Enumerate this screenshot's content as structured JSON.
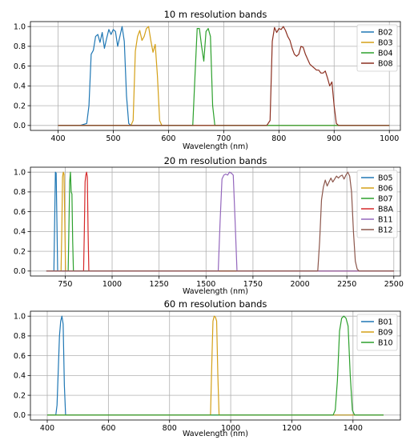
{
  "chart_data": [
    {
      "type": "line",
      "title": "10 m resolution bands",
      "xlabel": "Wavelength (nm)",
      "ylabel": "",
      "xlim": [
        350,
        1020
      ],
      "ylim": [
        -0.05,
        1.05
      ],
      "xticks": [
        "400",
        "500",
        "600",
        "700",
        "800",
        "900",
        "1000"
      ],
      "yticks": [
        "0.0",
        "0.2",
        "0.4",
        "0.6",
        "0.8",
        "1.0"
      ],
      "grid": true,
      "legend": "top-right",
      "baseline_x": [
        400,
        1000
      ],
      "series": [
        {
          "name": "B02",
          "color": "#1f77b4",
          "x": [
            440,
            452,
            456,
            460,
            464,
            468,
            472,
            476,
            480,
            484,
            488,
            492,
            496,
            500,
            504,
            508,
            512,
            516,
            520,
            524,
            528,
            532
          ],
          "y": [
            0,
            0.02,
            0.2,
            0.72,
            0.76,
            0.9,
            0.92,
            0.84,
            0.94,
            0.78,
            0.88,
            0.97,
            0.92,
            0.97,
            0.95,
            0.8,
            0.9,
            1.0,
            0.85,
            0.3,
            0.02,
            0
          ]
        },
        {
          "name": "B03",
          "color": "#d4a017",
          "x": [
            532,
            536,
            540,
            544,
            548,
            552,
            556,
            560,
            564,
            568,
            572,
            576,
            580,
            584,
            588
          ],
          "y": [
            0,
            0.05,
            0.75,
            0.9,
            0.96,
            0.86,
            0.9,
            0.98,
            1.0,
            0.86,
            0.74,
            0.82,
            0.5,
            0.05,
            0
          ]
        },
        {
          "name": "B04",
          "color": "#2ca02c",
          "x": [
            644,
            648,
            652,
            656,
            660,
            664,
            668,
            672,
            676,
            680,
            684
          ],
          "y": [
            0,
            0.5,
            0.98,
            0.98,
            0.8,
            0.65,
            0.95,
            0.98,
            0.9,
            0.2,
            0
          ]
        },
        {
          "name": "B08",
          "color": "#8b2e1f",
          "x": [
            778,
            784,
            788,
            792,
            796,
            800,
            804,
            808,
            812,
            816,
            820,
            824,
            828,
            832,
            836,
            840,
            844,
            848,
            852,
            856,
            860,
            864,
            868,
            872,
            876,
            880,
            884,
            888,
            892,
            896,
            900,
            904,
            908
          ],
          "y": [
            0,
            0.05,
            0.85,
            0.99,
            0.94,
            0.98,
            0.97,
            1.0,
            0.96,
            0.9,
            0.86,
            0.78,
            0.72,
            0.7,
            0.72,
            0.8,
            0.79,
            0.72,
            0.67,
            0.62,
            0.6,
            0.58,
            0.56,
            0.56,
            0.53,
            0.53,
            0.55,
            0.48,
            0.4,
            0.44,
            0.2,
            0.02,
            0
          ]
        }
      ]
    },
    {
      "type": "line",
      "title": "20 m resolution bands",
      "xlabel": "Wavelength (nm)",
      "ylabel": "",
      "xlim": [
        565,
        2535
      ],
      "ylim": [
        -0.05,
        1.05
      ],
      "xticks": [
        "750",
        "1000",
        "1250",
        "1500",
        "1750",
        "2000",
        "2250",
        "2500"
      ],
      "yticks": [
        "0.0",
        "0.2",
        "0.4",
        "0.6",
        "0.8",
        "1.0"
      ],
      "grid": true,
      "legend": "top-right",
      "baseline_x": [
        650,
        2500
      ],
      "series": [
        {
          "name": "B05",
          "color": "#1f77b4",
          "x": [
            690,
            694,
            698,
            702,
            706,
            710
          ],
          "y": [
            0,
            0.5,
            1.0,
            0.99,
            0.5,
            0
          ]
        },
        {
          "name": "B06",
          "color": "#d4a017",
          "x": [
            728,
            732,
            736,
            740,
            744,
            748,
            752
          ],
          "y": [
            0,
            0.4,
            0.95,
            1.0,
            0.98,
            0.5,
            0
          ]
        },
        {
          "name": "B07",
          "color": "#2ca02c",
          "x": [
            766,
            770,
            774,
            778,
            782,
            786,
            790,
            794
          ],
          "y": [
            0,
            0.45,
            0.9,
            1.0,
            0.8,
            0.78,
            0.3,
            0
          ]
        },
        {
          "name": "B8A",
          "color": "#d62728",
          "x": [
            848,
            852,
            856,
            860,
            864,
            868,
            872,
            876
          ],
          "y": [
            0,
            0.4,
            0.9,
            0.97,
            1.0,
            0.95,
            0.4,
            0
          ]
        },
        {
          "name": "B11",
          "color": "#9467bd",
          "x": [
            1565,
            1575,
            1585,
            1595,
            1605,
            1615,
            1625,
            1635,
            1645,
            1655,
            1665
          ],
          "y": [
            0,
            0.5,
            0.93,
            0.97,
            0.98,
            0.97,
            1.0,
            0.99,
            0.97,
            0.5,
            0
          ]
        },
        {
          "name": "B12",
          "color": "#8c564b",
          "x": [
            2095,
            2105,
            2115,
            2125,
            2135,
            2145,
            2155,
            2165,
            2175,
            2185,
            2195,
            2205,
            2215,
            2225,
            2235,
            2245,
            2255,
            2265,
            2275,
            2285,
            2295,
            2305,
            2315
          ],
          "y": [
            0,
            0.3,
            0.72,
            0.85,
            0.92,
            0.86,
            0.9,
            0.94,
            0.9,
            0.93,
            0.96,
            0.94,
            0.96,
            0.97,
            0.93,
            0.97,
            1.0,
            0.96,
            0.8,
            0.4,
            0.1,
            0.02,
            0
          ]
        }
      ]
    },
    {
      "type": "line",
      "title": "60 m resolution bands",
      "xlabel": "Wavelength (nm)",
      "ylabel": "",
      "xlim": [
        345,
        1555
      ],
      "ylim": [
        -0.05,
        1.05
      ],
      "xticks": [
        "400",
        "600",
        "800",
        "1000",
        "1200",
        "1400"
      ],
      "yticks": [
        "0.0",
        "0.2",
        "0.4",
        "0.6",
        "0.8",
        "1.0"
      ],
      "grid": true,
      "legend": "top-right",
      "baseline_x": [
        400,
        1500
      ],
      "series": [
        {
          "name": "B01",
          "color": "#1f77b4",
          "x": [
            428,
            432,
            436,
            440,
            444,
            448,
            452,
            456,
            460
          ],
          "y": [
            0,
            0.1,
            0.45,
            0.8,
            0.95,
            1.0,
            0.92,
            0.3,
            0
          ]
        },
        {
          "name": "B09",
          "color": "#d4a017",
          "x": [
            934,
            938,
            942,
            946,
            950,
            954,
            958,
            962
          ],
          "y": [
            0,
            0.5,
            0.95,
            1.0,
            0.99,
            0.95,
            0.4,
            0
          ]
        },
        {
          "name": "B10",
          "color": "#2ca02c",
          "x": [
            1335,
            1342,
            1349,
            1356,
            1363,
            1370,
            1377,
            1384,
            1391,
            1398,
            1405
          ],
          "y": [
            0,
            0.05,
            0.35,
            0.85,
            0.98,
            1.0,
            0.98,
            0.9,
            0.4,
            0.05,
            0
          ]
        }
      ]
    }
  ]
}
